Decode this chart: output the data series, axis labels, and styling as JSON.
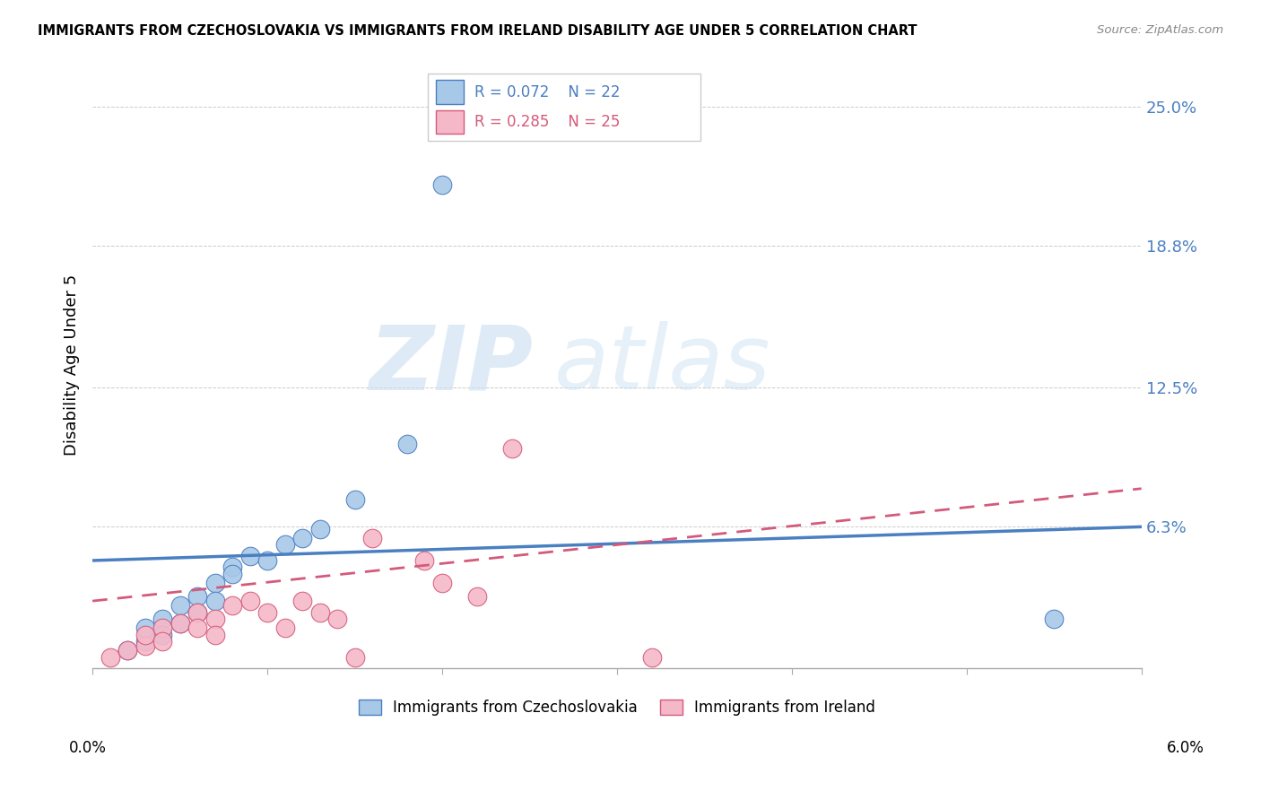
{
  "title": "IMMIGRANTS FROM CZECHOSLOVAKIA VS IMMIGRANTS FROM IRELAND DISABILITY AGE UNDER 5 CORRELATION CHART",
  "source": "Source: ZipAtlas.com",
  "ylabel": "Disability Age Under 5",
  "color_blue": "#a8c8e8",
  "color_pink": "#f5b8c8",
  "color_blue_line": "#4a7fc1",
  "color_pink_line": "#d45a7a",
  "watermark_zip": "ZIP",
  "watermark_atlas": "atlas",
  "blue_scatter": [
    [
      0.002,
      0.008
    ],
    [
      0.003,
      0.012
    ],
    [
      0.003,
      0.018
    ],
    [
      0.004,
      0.022
    ],
    [
      0.004,
      0.015
    ],
    [
      0.005,
      0.028
    ],
    [
      0.005,
      0.02
    ],
    [
      0.006,
      0.032
    ],
    [
      0.006,
      0.025
    ],
    [
      0.007,
      0.038
    ],
    [
      0.007,
      0.03
    ],
    [
      0.008,
      0.045
    ],
    [
      0.008,
      0.042
    ],
    [
      0.009,
      0.05
    ],
    [
      0.01,
      0.048
    ],
    [
      0.011,
      0.055
    ],
    [
      0.012,
      0.058
    ],
    [
      0.013,
      0.062
    ],
    [
      0.015,
      0.075
    ],
    [
      0.018,
      0.1
    ],
    [
      0.02,
      0.215
    ],
    [
      0.055,
      0.022
    ]
  ],
  "pink_scatter": [
    [
      0.001,
      0.005
    ],
    [
      0.002,
      0.008
    ],
    [
      0.003,
      0.01
    ],
    [
      0.003,
      0.015
    ],
    [
      0.004,
      0.018
    ],
    [
      0.004,
      0.012
    ],
    [
      0.005,
      0.02
    ],
    [
      0.006,
      0.025
    ],
    [
      0.006,
      0.018
    ],
    [
      0.007,
      0.022
    ],
    [
      0.007,
      0.015
    ],
    [
      0.008,
      0.028
    ],
    [
      0.009,
      0.03
    ],
    [
      0.01,
      0.025
    ],
    [
      0.011,
      0.018
    ],
    [
      0.012,
      0.03
    ],
    [
      0.013,
      0.025
    ],
    [
      0.014,
      0.022
    ],
    [
      0.015,
      0.005
    ],
    [
      0.016,
      0.058
    ],
    [
      0.019,
      0.048
    ],
    [
      0.02,
      0.038
    ],
    [
      0.022,
      0.032
    ],
    [
      0.024,
      0.098
    ],
    [
      0.032,
      0.005
    ]
  ],
  "blue_line": [
    [
      0.0,
      0.048
    ],
    [
      0.06,
      0.063
    ]
  ],
  "pink_line": [
    [
      0.0,
      0.03
    ],
    [
      0.06,
      0.08
    ]
  ],
  "xlim": [
    0.0,
    0.06
  ],
  "ylim": [
    0.0,
    0.27
  ],
  "ytick_vals": [
    0.0,
    0.063,
    0.125,
    0.188,
    0.25
  ],
  "ytick_labels": [
    "",
    "6.3%",
    "12.5%",
    "18.8%",
    "25.0%"
  ]
}
